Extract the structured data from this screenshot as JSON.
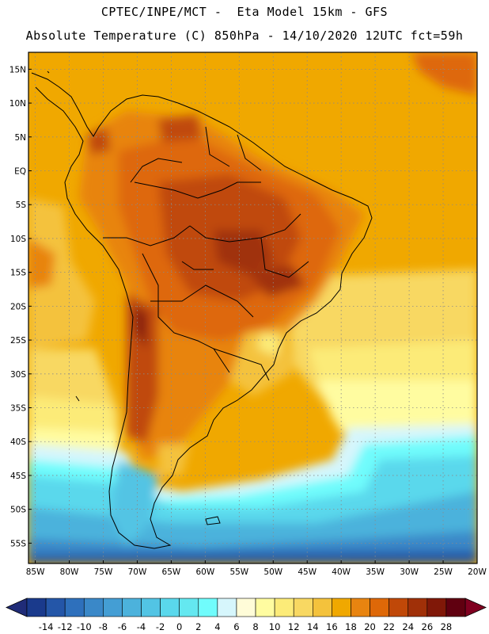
{
  "header": {
    "line1": "CPTEC/INPE/MCT -  Eta Model 15km - GFS",
    "line2": "Absolute Temperature (C) 850hPa - 14/10/2020 12UTC fct=59h"
  },
  "map": {
    "lat_range": [
      -58,
      17.5
    ],
    "lon_range": [
      -86,
      -20
    ],
    "lat_ticks": [
      "15N",
      "10N",
      "5N",
      "EQ",
      "5S",
      "10S",
      "15S",
      "20S",
      "25S",
      "30S",
      "35S",
      "40S",
      "45S",
      "50S",
      "55S"
    ],
    "lat_values": [
      15,
      10,
      5,
      0,
      -5,
      -10,
      -15,
      -20,
      -25,
      -30,
      -35,
      -40,
      -45,
      -50,
      -55
    ],
    "lon_ticks": [
      "85W",
      "80W",
      "75W",
      "70W",
      "65W",
      "60W",
      "55W",
      "50W",
      "45W",
      "40W",
      "35W",
      "30W",
      "25W",
      "20W"
    ],
    "lon_values": [
      -85,
      -80,
      -75,
      -70,
      -65,
      -60,
      -55,
      -50,
      -45,
      -40,
      -35,
      -30,
      -25,
      -20
    ],
    "gridlines": true,
    "ocean_base_color": "#f0a800",
    "land_outline_color": "#000000"
  },
  "colorbar": {
    "labels": [
      "-14",
      "-12",
      "-10",
      "-8",
      "-6",
      "-4",
      "-2",
      "0",
      "2",
      "4",
      "6",
      "8",
      "10",
      "12",
      "14",
      "16",
      "18",
      "20",
      "22",
      "24",
      "26",
      "28"
    ],
    "colors": [
      "#1a3a8c",
      "#2456a8",
      "#2e70bc",
      "#3a88c8",
      "#449ed4",
      "#4cb2dc",
      "#52c4e4",
      "#5ad8ec",
      "#64e8f0",
      "#70fcfc",
      "#d6f6fc",
      "#fffcd8",
      "#fffca0",
      "#fceb78",
      "#f8d862",
      "#f4c23c",
      "#f0a800",
      "#e88410",
      "#de6808",
      "#c04808",
      "#a03008",
      "#801808",
      "#600010"
    ],
    "under_color": "#202c78",
    "over_color": "#800020"
  }
}
